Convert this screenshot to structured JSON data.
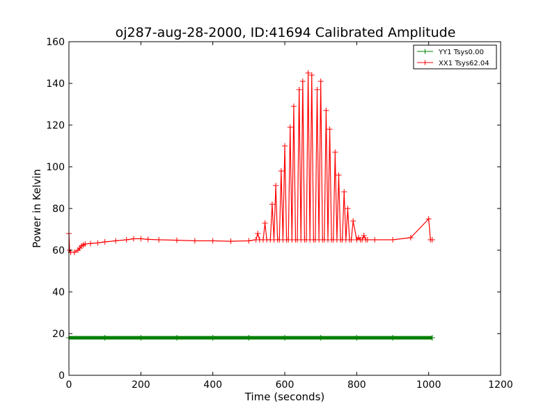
{
  "chart_data": {
    "type": "line",
    "title": "oj287-aug-28-2000, ID:41694 Calibrated Amplitude",
    "xlabel": "Time (seconds)",
    "ylabel": "Power in Kelvin",
    "xlim": [
      0,
      1200
    ],
    "ylim": [
      0,
      160
    ],
    "x_ticks": [
      0,
      200,
      400,
      600,
      800,
      1000,
      1200
    ],
    "y_ticks": [
      0,
      20,
      40,
      60,
      80,
      100,
      120,
      140,
      160
    ],
    "grid": false,
    "legend_position": "top-right",
    "marker": "+",
    "series": [
      {
        "name": "YY1 Tsys0.00",
        "color": "#008000",
        "x": [
          0,
          100,
          200,
          300,
          400,
          500,
          600,
          700,
          800,
          900,
          1010
        ],
        "y": [
          18,
          18,
          18,
          18,
          18,
          18,
          18,
          18,
          18,
          18,
          18
        ]
      },
      {
        "name": "XX1 Tsys62.04",
        "color": "#ff0000",
        "x": [
          0,
          2,
          5,
          15,
          25,
          30,
          35,
          40,
          45,
          60,
          80,
          100,
          130,
          160,
          180,
          200,
          220,
          250,
          300,
          350,
          400,
          450,
          500,
          520,
          525,
          530,
          540,
          545,
          550,
          560,
          565,
          570,
          575,
          580,
          585,
          590,
          595,
          600,
          605,
          610,
          615,
          620,
          625,
          630,
          635,
          640,
          645,
          650,
          655,
          660,
          665,
          670,
          675,
          680,
          685,
          690,
          695,
          700,
          705,
          710,
          715,
          720,
          725,
          730,
          735,
          740,
          745,
          750,
          755,
          760,
          765,
          770,
          775,
          780,
          785,
          790,
          800,
          805,
          810,
          815,
          820,
          825,
          830,
          850,
          900,
          950,
          1000,
          1005,
          1010
        ],
        "y": [
          68,
          60,
          59,
          59,
          60,
          61,
          62,
          62.5,
          63,
          63.2,
          63.5,
          64,
          64.5,
          65,
          65.5,
          65.5,
          65.2,
          65,
          64.8,
          64.5,
          64.5,
          64.3,
          64.5,
          65,
          68,
          65,
          65,
          73,
          65,
          65,
          82,
          65,
          91,
          65,
          65,
          98,
          65,
          110,
          65,
          65,
          119,
          65,
          129,
          65,
          65,
          137,
          65,
          141,
          65,
          65,
          145,
          65,
          144,
          65,
          65,
          137,
          65,
          141,
          65,
          65,
          127,
          65,
          118,
          65,
          65,
          107,
          65,
          96,
          65,
          65,
          88,
          65,
          80,
          65,
          65,
          74,
          65,
          66,
          65,
          65,
          67,
          65,
          65,
          65,
          65,
          66,
          75,
          65,
          65
        ]
      }
    ]
  }
}
